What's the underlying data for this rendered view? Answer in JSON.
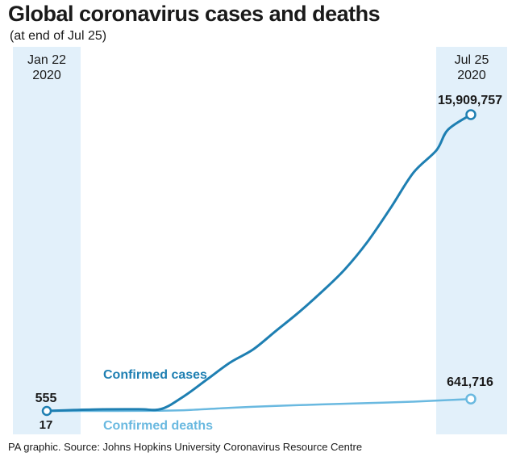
{
  "title": "Global coronavirus cases and deaths",
  "subtitle": "(at end of Jul 25)",
  "source": "PA graphic. Source: Johns Hopkins University Coronavirus Resource Centre",
  "chart_data": {
    "type": "line",
    "x_start": {
      "label_line1": "Jan 22",
      "label_line2": "2020"
    },
    "x_end": {
      "label_line1": "Jul 25",
      "label_line2": "2020"
    },
    "x_days": 185,
    "ylim": [
      0,
      16500000
    ],
    "series": [
      {
        "name": "Confirmed cases",
        "color": "#1e7fb2",
        "start_label": "555",
        "end_label": "15,909,757",
        "points": [
          [
            0,
            555
          ],
          [
            20,
            80000
          ],
          [
            40,
            90000
          ],
          [
            50,
            110000
          ],
          [
            60,
            800000
          ],
          [
            70,
            1700000
          ],
          [
            80,
            2600000
          ],
          [
            90,
            3300000
          ],
          [
            100,
            4300000
          ],
          [
            110,
            5300000
          ],
          [
            120,
            6400000
          ],
          [
            130,
            7600000
          ],
          [
            140,
            9100000
          ],
          [
            150,
            10900000
          ],
          [
            160,
            12800000
          ],
          [
            170,
            14000000
          ],
          [
            175,
            15100000
          ],
          [
            185,
            15909757
          ]
        ]
      },
      {
        "name": "Confirmed deaths",
        "color": "#6ab9e0",
        "start_label": "17",
        "end_label": "641,716",
        "points": [
          [
            0,
            17
          ],
          [
            20,
            2000
          ],
          [
            40,
            3000
          ],
          [
            60,
            40000
          ],
          [
            80,
            170000
          ],
          [
            100,
            270000
          ],
          [
            120,
            350000
          ],
          [
            140,
            420000
          ],
          [
            160,
            500000
          ],
          [
            185,
            641716
          ]
        ]
      }
    ]
  }
}
